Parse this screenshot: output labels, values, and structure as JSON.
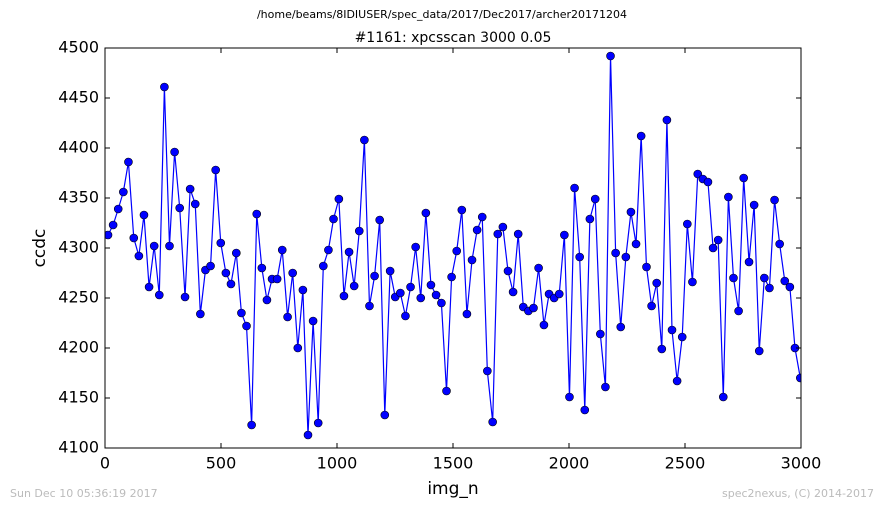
{
  "chart_data": {
    "type": "line",
    "suptitle": "/home/beams/8IDIUSER/spec_data/2017/Dec2017/archer20171204",
    "title": "#1161: xpcsscan 3000 0.05",
    "xlabel": "img_n",
    "ylabel": "ccdc",
    "footer_left": "Sun Dec 10 05:36:19 2017",
    "footer_right": "spec2nexus, (C) 2014-2017",
    "xlim": [
      0,
      3000
    ],
    "xticks": [
      0,
      500,
      1000,
      1500,
      2000,
      2500,
      3000
    ],
    "ylim": [
      4100,
      4500
    ],
    "yticks": [
      4100,
      4150,
      4200,
      4250,
      4300,
      4350,
      4400,
      4450,
      4500
    ],
    "grid": false,
    "x": [
      13,
      35,
      57,
      79,
      101,
      124,
      146,
      168,
      190,
      212,
      234,
      256,
      278,
      300,
      322,
      345,
      367,
      389,
      411,
      433,
      455,
      477,
      499,
      521,
      543,
      566,
      588,
      610,
      632,
      654,
      676,
      698,
      720,
      742,
      764,
      787,
      809,
      831,
      853,
      875,
      897,
      919,
      941,
      963,
      985,
      1008,
      1030,
      1052,
      1074,
      1096,
      1118,
      1140,
      1162,
      1184,
      1206,
      1229,
      1251,
      1273,
      1295,
      1317,
      1339,
      1361,
      1383,
      1405,
      1427,
      1450,
      1472,
      1494,
      1516,
      1538,
      1560,
      1582,
      1604,
      1626,
      1648,
      1671,
      1693,
      1715,
      1737,
      1759,
      1781,
      1803,
      1825,
      1847,
      1869,
      1892,
      1914,
      1936,
      1958,
      1980,
      2002,
      2024,
      2046,
      2068,
      2090,
      2113,
      2135,
      2157,
      2179,
      2201,
      2223,
      2245,
      2267,
      2289,
      2311,
      2334,
      2356,
      2378,
      2400,
      2422,
      2444,
      2466,
      2488,
      2510,
      2532,
      2555,
      2577,
      2599,
      2621,
      2643,
      2665,
      2687,
      2709,
      2731,
      2753,
      2776,
      2798,
      2820,
      2842,
      2864,
      2886,
      2908,
      2930,
      2952,
      2974,
      2997
    ],
    "series": [
      {
        "name": "ccdc",
        "color": "#0000ff",
        "values": [
          4313,
          4323,
          4339,
          4356,
          4386,
          4310,
          4292,
          4333,
          4261,
          4302,
          4253,
          4461,
          4302,
          4396,
          4340,
          4251,
          4359,
          4344,
          4234,
          4278,
          4282,
          4378,
          4305,
          4275,
          4264,
          4295,
          4235,
          4222,
          4123,
          4334,
          4280,
          4248,
          4269,
          4269,
          4298,
          4231,
          4275,
          4200,
          4258,
          4113,
          4227,
          4125,
          4282,
          4298,
          4329,
          4349,
          4252,
          4296,
          4262,
          4317,
          4408,
          4242,
          4272,
          4328,
          4133,
          4277,
          4251,
          4255,
          4232,
          4261,
          4301,
          4250,
          4335,
          4263,
          4253,
          4245,
          4157,
          4271,
          4297,
          4338,
          4234,
          4288,
          4318,
          4331,
          4177,
          4126,
          4314,
          4321,
          4277,
          4256,
          4314,
          4241,
          4237,
          4240,
          4280,
          4223,
          4254,
          4250,
          4254,
          4313,
          4151,
          4360,
          4291,
          4138,
          4329,
          4349,
          4214,
          4161,
          4492,
          4295,
          4221,
          4291,
          4336,
          4304,
          4412,
          4281,
          4242,
          4265,
          4199,
          4428,
          4218,
          4167,
          4211,
          4324,
          4266,
          4374,
          4369,
          4366,
          4300,
          4308,
          4151,
          4351,
          4270,
          4237,
          4370,
          4286,
          4343,
          4197,
          4270,
          4260,
          4348,
          4304,
          4267,
          4261,
          4200,
          4170
        ]
      }
    ]
  }
}
